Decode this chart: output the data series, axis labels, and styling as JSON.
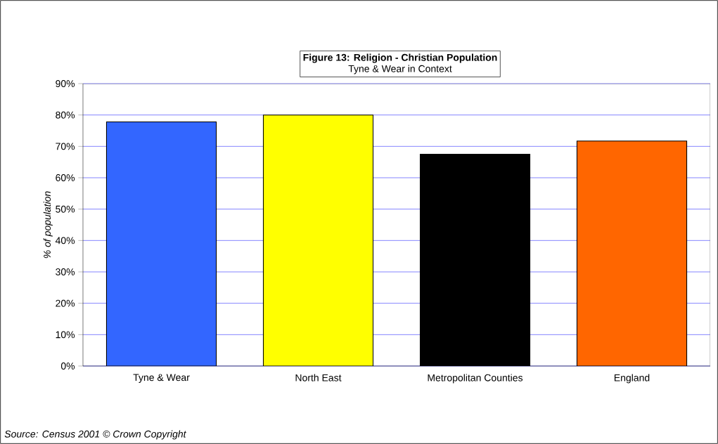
{
  "chart_data": {
    "type": "bar",
    "title": "Figure 13: Religion - Christian Population",
    "subtitle": "Tyne & Wear in Context",
    "ylabel": "% of population",
    "categories": [
      "Tyne & Wear",
      "North East",
      "Metropolitan Counties",
      "England"
    ],
    "values": [
      77.8,
      80.0,
      67.5,
      71.7
    ],
    "colors": [
      "#3366ff",
      "#ffff00",
      "#000000",
      "#ff6600"
    ],
    "ylim": [
      0,
      90
    ],
    "yticks": [
      {
        "value": 0,
        "label": "0%"
      },
      {
        "value": 10,
        "label": "10%"
      },
      {
        "value": 20,
        "label": "20%"
      },
      {
        "value": 30,
        "label": "30%"
      },
      {
        "value": 40,
        "label": "40%"
      },
      {
        "value": 50,
        "label": "50%"
      },
      {
        "value": 60,
        "label": "60%"
      },
      {
        "value": 70,
        "label": "70%"
      },
      {
        "value": 80,
        "label": "80%"
      },
      {
        "value": 90,
        "label": "90%"
      }
    ],
    "grid": "y",
    "annotations": [
      "Source: Census 2001 © Crown Copyright"
    ]
  }
}
